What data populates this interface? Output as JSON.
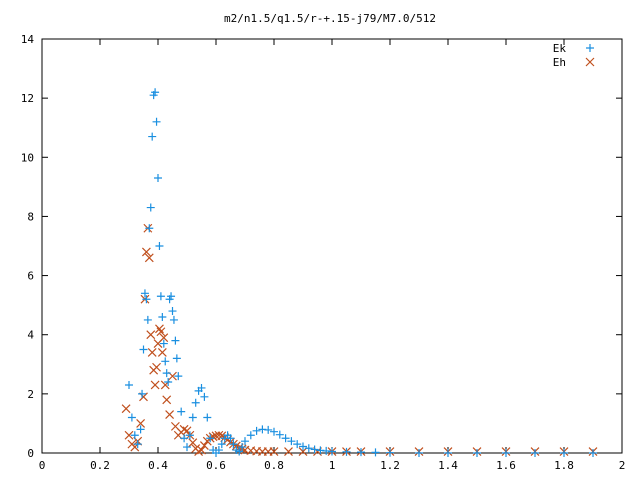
{
  "chart_data": {
    "type": "scatter",
    "title": "m2/n1.5/q1.5/r-+.15-j79/M7.0/512",
    "xlabel": "",
    "ylabel": "",
    "xlim": [
      0,
      2
    ],
    "ylim": [
      0,
      14
    ],
    "xticks": [
      "0",
      "0.2",
      "0.4",
      "0.6",
      "0.8",
      "1",
      "1.2",
      "1.4",
      "1.6",
      "1.8",
      "2"
    ],
    "yticks": [
      "0",
      "2",
      "4",
      "6",
      "8",
      "10",
      "12",
      "14"
    ],
    "grid": false,
    "legend_position": "top-right",
    "series": [
      {
        "name": "Ek",
        "marker": "plus",
        "color": "#1a8fe0",
        "x": [
          0.3,
          0.31,
          0.32,
          0.33,
          0.34,
          0.345,
          0.35,
          0.355,
          0.36,
          0.365,
          0.37,
          0.375,
          0.38,
          0.385,
          0.39,
          0.395,
          0.4,
          0.405,
          0.41,
          0.415,
          0.42,
          0.425,
          0.43,
          0.435,
          0.44,
          0.445,
          0.45,
          0.455,
          0.46,
          0.465,
          0.47,
          0.48,
          0.49,
          0.5,
          0.51,
          0.52,
          0.53,
          0.54,
          0.55,
          0.56,
          0.57,
          0.58,
          0.59,
          0.6,
          0.61,
          0.62,
          0.63,
          0.64,
          0.65,
          0.66,
          0.67,
          0.68,
          0.69,
          0.7,
          0.72,
          0.74,
          0.76,
          0.78,
          0.8,
          0.82,
          0.84,
          0.86,
          0.88,
          0.9,
          0.92,
          0.94,
          0.96,
          0.98,
          1.0,
          1.05,
          1.1,
          1.15,
          1.2,
          1.3,
          1.4,
          1.5,
          1.6,
          1.7,
          1.8,
          1.9
        ],
        "y": [
          2.3,
          1.2,
          0.6,
          0.3,
          0.8,
          2.0,
          3.5,
          5.4,
          5.2,
          4.5,
          7.6,
          8.3,
          10.7,
          12.1,
          12.2,
          11.2,
          9.3,
          7.0,
          5.3,
          4.6,
          3.7,
          3.1,
          2.7,
          2.4,
          5.2,
          5.3,
          4.8,
          4.5,
          3.8,
          3.2,
          2.6,
          1.4,
          0.5,
          0.2,
          0.6,
          1.2,
          1.7,
          2.1,
          2.2,
          1.9,
          1.2,
          0.5,
          0.1,
          0.0,
          0.1,
          0.3,
          0.5,
          0.6,
          0.5,
          0.3,
          0.1,
          0.05,
          0.2,
          0.4,
          0.6,
          0.75,
          0.8,
          0.78,
          0.72,
          0.62,
          0.5,
          0.4,
          0.3,
          0.22,
          0.16,
          0.12,
          0.09,
          0.07,
          0.05,
          0.04,
          0.03,
          0.02,
          0.01,
          0.0,
          0.0,
          0.0,
          0.0,
          0.0,
          0.0,
          0.0
        ]
      },
      {
        "name": "Eh",
        "marker": "cross",
        "color": "#c0501e",
        "x": [
          0.29,
          0.3,
          0.31,
          0.32,
          0.33,
          0.34,
          0.35,
          0.355,
          0.36,
          0.365,
          0.37,
          0.375,
          0.38,
          0.385,
          0.39,
          0.395,
          0.4,
          0.405,
          0.41,
          0.415,
          0.42,
          0.425,
          0.43,
          0.44,
          0.45,
          0.46,
          0.47,
          0.48,
          0.49,
          0.5,
          0.51,
          0.52,
          0.53,
          0.54,
          0.55,
          0.56,
          0.57,
          0.58,
          0.59,
          0.6,
          0.61,
          0.62,
          0.63,
          0.64,
          0.65,
          0.66,
          0.67,
          0.68,
          0.69,
          0.7,
          0.72,
          0.74,
          0.76,
          0.78,
          0.8,
          0.85,
          0.9,
          0.95,
          1.0,
          1.05,
          1.1,
          1.2,
          1.3,
          1.4,
          1.5,
          1.6,
          1.7,
          1.8,
          1.9
        ],
        "y": [
          1.5,
          0.6,
          0.3,
          0.2,
          0.4,
          1.0,
          1.9,
          5.2,
          6.8,
          7.6,
          6.6,
          4.0,
          3.4,
          2.8,
          2.3,
          2.9,
          3.7,
          4.2,
          4.1,
          3.4,
          3.9,
          2.3,
          1.8,
          1.3,
          2.6,
          0.9,
          0.6,
          0.7,
          0.8,
          0.75,
          0.6,
          0.35,
          0.15,
          0.05,
          0.1,
          0.25,
          0.4,
          0.5,
          0.55,
          0.58,
          0.6,
          0.58,
          0.52,
          0.45,
          0.37,
          0.3,
          0.24,
          0.18,
          0.14,
          0.1,
          0.08,
          0.06,
          0.05,
          0.05,
          0.05,
          0.05,
          0.05,
          0.05,
          0.05,
          0.05,
          0.05,
          0.05,
          0.05,
          0.05,
          0.05,
          0.05,
          0.05,
          0.05,
          0.05
        ]
      }
    ]
  }
}
